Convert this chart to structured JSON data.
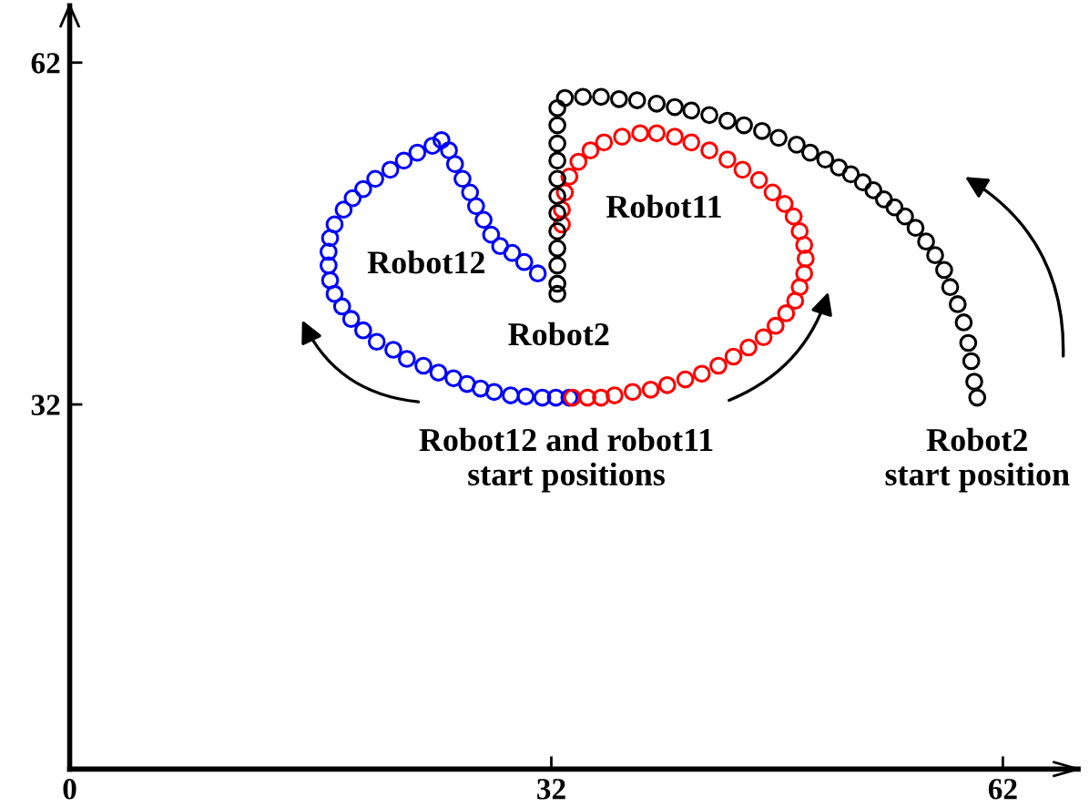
{
  "chart_data": {
    "type": "scatter",
    "marker": "circle",
    "grid": false,
    "legend": false,
    "xlim": [
      0,
      67
    ],
    "ylim": [
      0,
      67
    ],
    "xticks": [
      0,
      32,
      62
    ],
    "yticks": [
      32,
      62
    ],
    "series": [
      {
        "name": "Robot12",
        "color": "#0000ff",
        "x": [
          33.2,
          32.3,
          31.4,
          30.3,
          29.3,
          28.2,
          27.3,
          26.4,
          25.5,
          24.5,
          23.5,
          22.4,
          21.5,
          20.4,
          19.5,
          18.7,
          18.1,
          17.6,
          17.3,
          17.2,
          17.2,
          17.3,
          17.6,
          18.2,
          18.8,
          19.5,
          20.3,
          21.3,
          22.2,
          23.1,
          24.1,
          24.7,
          25.2,
          25.6,
          26.1,
          26.6,
          27.0,
          27.5,
          28.0,
          28.6,
          29.4,
          30.2,
          31.1
        ],
        "values": [
          32.6,
          32.6,
          32.6,
          32.7,
          32.8,
          33.1,
          33.4,
          33.8,
          34.3,
          34.8,
          35.4,
          36.0,
          36.8,
          37.5,
          38.5,
          39.5,
          40.6,
          41.7,
          42.9,
          44.2,
          45.4,
          46.6,
          47.8,
          49.1,
          50.1,
          50.9,
          51.8,
          52.6,
          53.4,
          54.1,
          54.7,
          55.2,
          54.3,
          53.1,
          51.8,
          50.6,
          49.4,
          48.2,
          46.9,
          45.9,
          45.3,
          44.5,
          43.5
        ]
      },
      {
        "name": "Robot11",
        "color": "#ff0000",
        "x": [
          33.4,
          34.4,
          35.3,
          36.2,
          37.4,
          38.6,
          39.7,
          40.9,
          42.0,
          43.1,
          44.1,
          45.1,
          46.1,
          46.9,
          47.6,
          48.2,
          48.5,
          48.8,
          48.9,
          48.8,
          48.5,
          48.1,
          47.5,
          46.7,
          45.8,
          44.7,
          43.7,
          42.5,
          41.3,
          40.2,
          39.0,
          37.9,
          36.7,
          35.5,
          34.6,
          33.8,
          33.2,
          32.9,
          32.7,
          32.7
        ],
        "values": [
          32.6,
          32.6,
          32.6,
          32.8,
          33.1,
          33.3,
          33.7,
          34.2,
          34.7,
          35.4,
          36.2,
          37.0,
          37.9,
          38.9,
          40.0,
          41.1,
          42.3,
          43.5,
          44.8,
          46.0,
          47.2,
          48.5,
          49.6,
          50.6,
          51.7,
          52.6,
          53.5,
          54.3,
          55.0,
          55.5,
          55.8,
          55.8,
          55.5,
          55.0,
          54.3,
          53.3,
          52.0,
          50.6,
          49.1,
          47.8
        ]
      },
      {
        "name": "Robot2",
        "color": "#000000",
        "x": [
          60.3,
          60.1,
          59.9,
          59.7,
          59.4,
          59.0,
          58.5,
          58.1,
          57.5,
          56.9,
          56.2,
          55.5,
          54.8,
          54.1,
          53.4,
          52.7,
          51.9,
          51.1,
          50.2,
          49.2,
          48.3,
          47.1,
          46.0,
          44.8,
          43.7,
          42.5,
          41.3,
          40.2,
          39.0,
          37.7,
          36.5,
          35.3,
          34.1,
          32.9,
          32.4,
          32.4,
          32.4,
          32.4,
          32.4,
          32.4,
          32.4,
          32.4,
          32.4,
          32.4,
          32.4,
          32.4
        ],
        "values": [
          32.6,
          34.0,
          35.8,
          37.4,
          39.2,
          40.8,
          42.3,
          43.8,
          45.1,
          46.3,
          47.5,
          48.5,
          49.3,
          50.0,
          50.8,
          51.5,
          52.2,
          52.8,
          53.5,
          54.1,
          54.8,
          55.4,
          56.0,
          56.5,
          56.9,
          57.4,
          57.8,
          58.1,
          58.4,
          58.7,
          58.8,
          59.0,
          59.0,
          58.9,
          58.0,
          56.5,
          54.9,
          53.4,
          51.8,
          50.3,
          48.8,
          47.2,
          45.7,
          44.2,
          42.6,
          41.7
        ]
      }
    ],
    "annotations": [
      {
        "text": "Robot12 and robot11\nstart positions",
        "x": 33.0,
        "y": 32.6
      },
      {
        "text": "Robot2\nstart position",
        "x": 60.3,
        "y": 32.6
      }
    ]
  }
}
